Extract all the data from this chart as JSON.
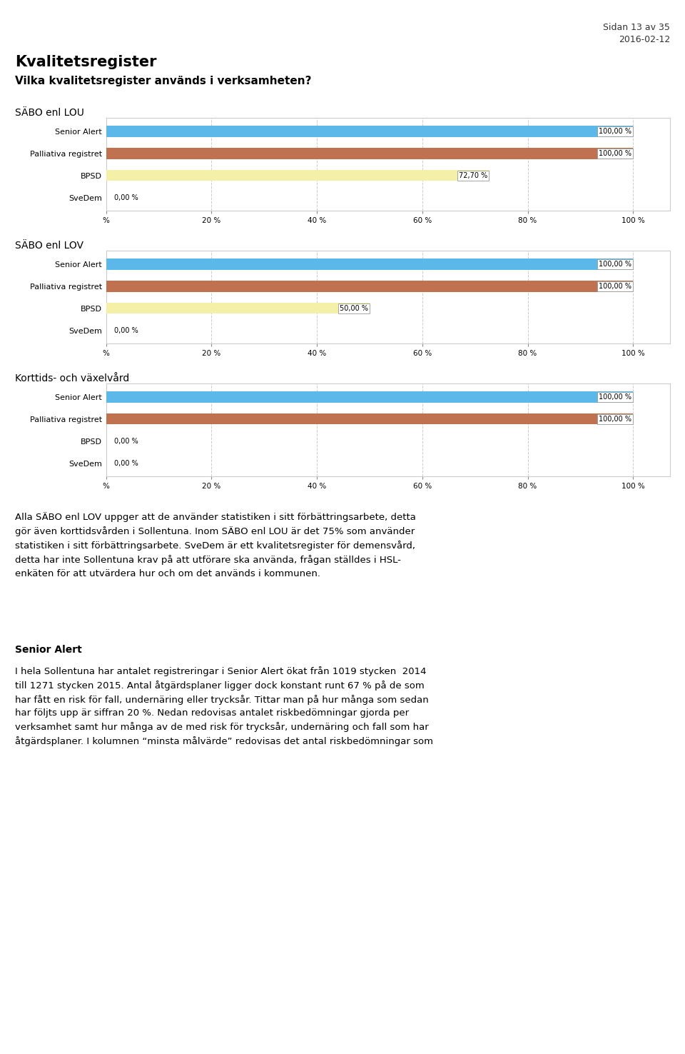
{
  "header_right": "Sidan 13 av 35\n2016-02-12",
  "main_title": "Kvalitetsregister",
  "subtitle": "Vilka kvalitetsregister används i verksamheten?",
  "charts": [
    {
      "section_label": "SÄBO enl LOU",
      "categories": [
        "Senior Alert",
        "Palliativa registret",
        "BPSD",
        "SveDem"
      ],
      "values": [
        100.0,
        100.0,
        72.7,
        0.0
      ],
      "value_labels": [
        "100,00 %",
        "100,00 %",
        "72,70 %",
        "0,00 %"
      ],
      "bar_colors": [
        "#5bb8e8",
        "#c0714f",
        "#f5f0a8",
        "#c0714f"
      ]
    },
    {
      "section_label": "SÄBO enl LOV",
      "categories": [
        "Senior Alert",
        "Palliativa registret",
        "BPSD",
        "SveDem"
      ],
      "values": [
        100.0,
        100.0,
        50.0,
        0.0
      ],
      "value_labels": [
        "100,00 %",
        "100,00 %",
        "50,00 %",
        "0,00 %"
      ],
      "bar_colors": [
        "#5bb8e8",
        "#c0714f",
        "#f5f0a8",
        "#c0714f"
      ]
    },
    {
      "section_label": "Korttids- och växelvård",
      "categories": [
        "Senior Alert",
        "Palliativa registret",
        "BPSD",
        "SveDem"
      ],
      "values": [
        100.0,
        100.0,
        0.0,
        0.0
      ],
      "value_labels": [
        "100,00 %",
        "100,00 %",
        "0,00 %",
        "0,00 %"
      ],
      "bar_colors": [
        "#5bb8e8",
        "#c0714f",
        "#f5f0a8",
        "#c0714f"
      ]
    }
  ],
  "paragraph1": "Alla SÄBO enl LOV uppger att de använder statistiken i sitt förbättringsarbete, detta\ngör även korttidsvården i Sollentuna. Inom SÄBO enl LOU är det 75% som använder\nstatistiken i sitt förbättringsarbete. SveDem är ett kvalitetsregister för demensvård,\ndetta har inte Sollentuna krav på att utförare ska använda, frågan ställdes i HSL-\nenkäten för att utvärdera hur och om det används i kommunen.",
  "bold_heading": "Senior Alert",
  "paragraph2": "I hela Sollentuna har antalet registreringar i Senior Alert ökat från 1019 stycken  2014\ntill 1271 stycken 2015. Antal åtgärdsplaner ligger dock konstant runt 67 % på de som\nhar fått en risk för fall, undernäring eller trycksår. Tittar man på hur många som sedan\nhar följts upp är siffran 20 %. Nedan redovisas antalet riskbedömningar gjorda per\nverksamhet samt hur många av de med risk för trycksår, undernäring och fall som har\nåtgärdsplaner. I kolumnen “minsta målvärde” redovisas det antal riskbedömningar som",
  "xlabel_ticks": [
    "%",
    "20 %",
    "40 %",
    "60 %",
    "80 %",
    "100 %"
  ],
  "xlabel_tick_vals": [
    0,
    20,
    40,
    60,
    80,
    100
  ],
  "bar_height": 0.5,
  "chart_bg": "#ffffff",
  "border_color": "#cccccc",
  "grid_color": "#cccccc",
  "page_bg": "#ffffff",
  "fig_width": 9.6,
  "fig_height": 14.76,
  "dpi": 100
}
